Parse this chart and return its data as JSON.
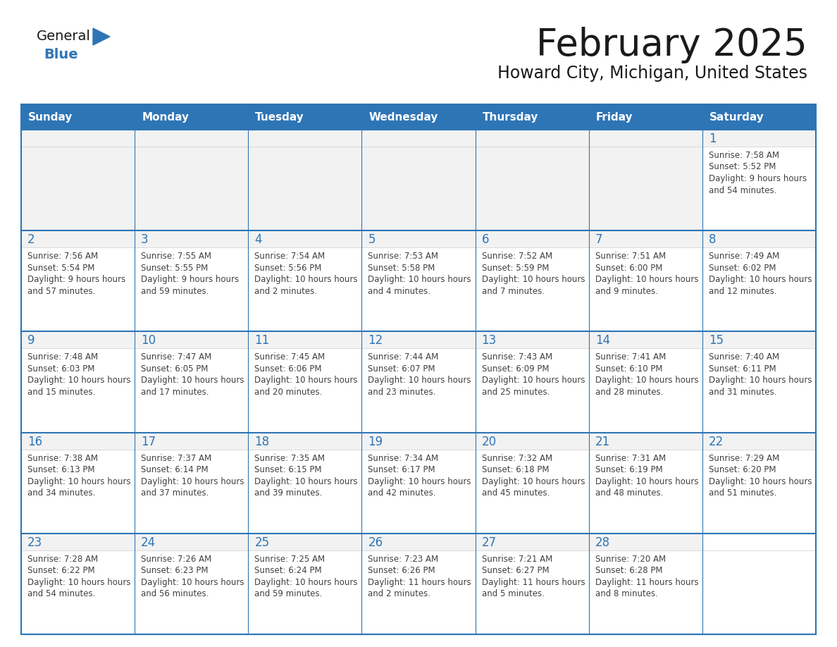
{
  "title": "February 2025",
  "subtitle": "Howard City, Michigan, United States",
  "header_bg": "#2E75B6",
  "header_text_color": "#FFFFFF",
  "cell_bg_white": "#FFFFFF",
  "cell_bg_gray": "#F2F2F2",
  "cell_border_color": "#2E75B6",
  "day_number_color": "#2E75B6",
  "cell_text_color": "#404040",
  "days_of_week": [
    "Sunday",
    "Monday",
    "Tuesday",
    "Wednesday",
    "Thursday",
    "Friday",
    "Saturday"
  ],
  "background_color": "#FFFFFF",
  "title_color": "#1a1a1a",
  "subtitle_color": "#1a1a1a",
  "logo_general_color": "#1a1a1a",
  "logo_blue_color": "#2E75B6",
  "calendar_data": [
    [
      null,
      null,
      null,
      null,
      null,
      null,
      {
        "day": 1,
        "sunrise": "7:58 AM",
        "sunset": "5:52 PM",
        "daylight": "9 hours and 54 minutes."
      }
    ],
    [
      {
        "day": 2,
        "sunrise": "7:56 AM",
        "sunset": "5:54 PM",
        "daylight": "9 hours and 57 minutes."
      },
      {
        "day": 3,
        "sunrise": "7:55 AM",
        "sunset": "5:55 PM",
        "daylight": "9 hours and 59 minutes."
      },
      {
        "day": 4,
        "sunrise": "7:54 AM",
        "sunset": "5:56 PM",
        "daylight": "10 hours and 2 minutes."
      },
      {
        "day": 5,
        "sunrise": "7:53 AM",
        "sunset": "5:58 PM",
        "daylight": "10 hours and 4 minutes."
      },
      {
        "day": 6,
        "sunrise": "7:52 AM",
        "sunset": "5:59 PM",
        "daylight": "10 hours and 7 minutes."
      },
      {
        "day": 7,
        "sunrise": "7:51 AM",
        "sunset": "6:00 PM",
        "daylight": "10 hours and 9 minutes."
      },
      {
        "day": 8,
        "sunrise": "7:49 AM",
        "sunset": "6:02 PM",
        "daylight": "10 hours and 12 minutes."
      }
    ],
    [
      {
        "day": 9,
        "sunrise": "7:48 AM",
        "sunset": "6:03 PM",
        "daylight": "10 hours and 15 minutes."
      },
      {
        "day": 10,
        "sunrise": "7:47 AM",
        "sunset": "6:05 PM",
        "daylight": "10 hours and 17 minutes."
      },
      {
        "day": 11,
        "sunrise": "7:45 AM",
        "sunset": "6:06 PM",
        "daylight": "10 hours and 20 minutes."
      },
      {
        "day": 12,
        "sunrise": "7:44 AM",
        "sunset": "6:07 PM",
        "daylight": "10 hours and 23 minutes."
      },
      {
        "day": 13,
        "sunrise": "7:43 AM",
        "sunset": "6:09 PM",
        "daylight": "10 hours and 25 minutes."
      },
      {
        "day": 14,
        "sunrise": "7:41 AM",
        "sunset": "6:10 PM",
        "daylight": "10 hours and 28 minutes."
      },
      {
        "day": 15,
        "sunrise": "7:40 AM",
        "sunset": "6:11 PM",
        "daylight": "10 hours and 31 minutes."
      }
    ],
    [
      {
        "day": 16,
        "sunrise": "7:38 AM",
        "sunset": "6:13 PM",
        "daylight": "10 hours and 34 minutes."
      },
      {
        "day": 17,
        "sunrise": "7:37 AM",
        "sunset": "6:14 PM",
        "daylight": "10 hours and 37 minutes."
      },
      {
        "day": 18,
        "sunrise": "7:35 AM",
        "sunset": "6:15 PM",
        "daylight": "10 hours and 39 minutes."
      },
      {
        "day": 19,
        "sunrise": "7:34 AM",
        "sunset": "6:17 PM",
        "daylight": "10 hours and 42 minutes."
      },
      {
        "day": 20,
        "sunrise": "7:32 AM",
        "sunset": "6:18 PM",
        "daylight": "10 hours and 45 minutes."
      },
      {
        "day": 21,
        "sunrise": "7:31 AM",
        "sunset": "6:19 PM",
        "daylight": "10 hours and 48 minutes."
      },
      {
        "day": 22,
        "sunrise": "7:29 AM",
        "sunset": "6:20 PM",
        "daylight": "10 hours and 51 minutes."
      }
    ],
    [
      {
        "day": 23,
        "sunrise": "7:28 AM",
        "sunset": "6:22 PM",
        "daylight": "10 hours and 54 minutes."
      },
      {
        "day": 24,
        "sunrise": "7:26 AM",
        "sunset": "6:23 PM",
        "daylight": "10 hours and 56 minutes."
      },
      {
        "day": 25,
        "sunrise": "7:25 AM",
        "sunset": "6:24 PM",
        "daylight": "10 hours and 59 minutes."
      },
      {
        "day": 26,
        "sunrise": "7:23 AM",
        "sunset": "6:26 PM",
        "daylight": "11 hours and 2 minutes."
      },
      {
        "day": 27,
        "sunrise": "7:21 AM",
        "sunset": "6:27 PM",
        "daylight": "11 hours and 5 minutes."
      },
      {
        "day": 28,
        "sunrise": "7:20 AM",
        "sunset": "6:28 PM",
        "daylight": "11 hours and 8 minutes."
      },
      null
    ]
  ]
}
